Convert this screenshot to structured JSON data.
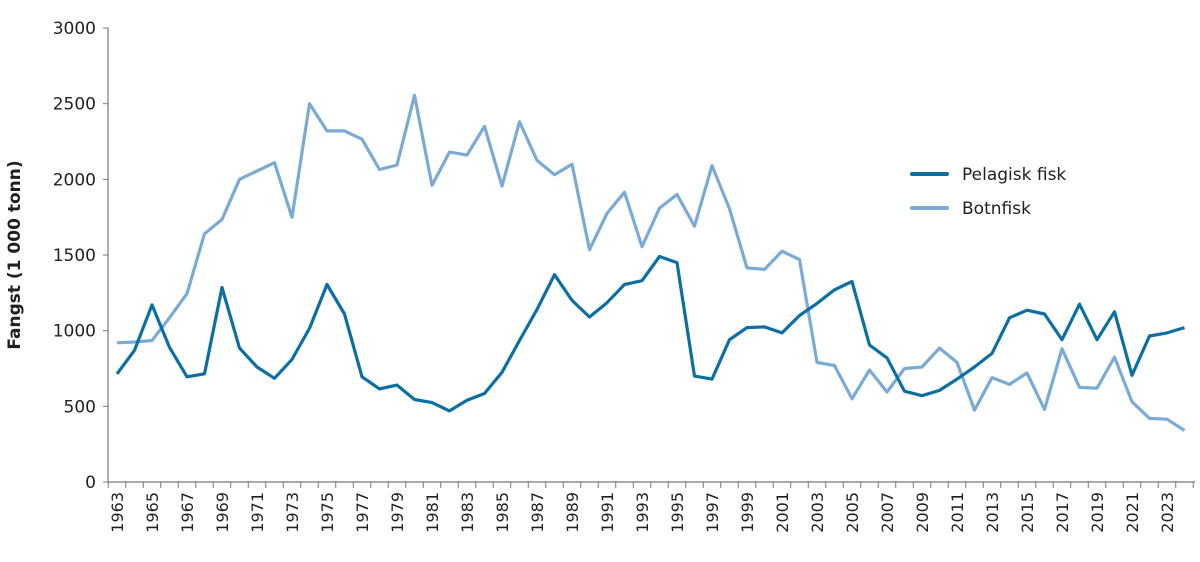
{
  "chart_data": {
    "type": "line",
    "title": "",
    "xlabel": "",
    "ylabel": "Fangst (1 000 tonn)",
    "ylim": [
      0,
      3000
    ],
    "yticks": [
      0,
      500,
      1000,
      1500,
      2000,
      2500,
      3000
    ],
    "x": [
      1963,
      1964,
      1965,
      1966,
      1967,
      1968,
      1969,
      1970,
      1971,
      1972,
      1973,
      1974,
      1975,
      1976,
      1977,
      1978,
      1979,
      1980,
      1981,
      1982,
      1983,
      1984,
      1985,
      1986,
      1987,
      1988,
      1989,
      1990,
      1991,
      1992,
      1993,
      1994,
      1995,
      1996,
      1997,
      1998,
      1999,
      2000,
      2001,
      2002,
      2003,
      2004,
      2005,
      2006,
      2007,
      2008,
      2009,
      2010,
      2011,
      2012,
      2013,
      2014,
      2015,
      2016,
      2017,
      2018,
      2019,
      2020,
      2021,
      2022,
      2023,
      2024
    ],
    "xtick_labels": [
      "1963",
      "1965",
      "1967",
      "1969",
      "1971",
      "1973",
      "1975",
      "1977",
      "1979",
      "1981",
      "1983",
      "1985",
      "1987",
      "1989",
      "1991",
      "1993",
      "1995",
      "1997",
      "1999",
      "2001",
      "2003",
      "2005",
      "2007",
      "2009",
      "2011",
      "2013",
      "2015",
      "2017",
      "2019",
      "2021",
      "2023"
    ],
    "grid": false,
    "legend_position": "right",
    "series": [
      {
        "name": "Pelagisk fisk",
        "color": "#0b6fa4",
        "values": [
          714,
          870,
          1170,
          890,
          695,
          715,
          1285,
          885,
          760,
          685,
          810,
          1015,
          1305,
          1110,
          695,
          615,
          640,
          545,
          525,
          470,
          540,
          585,
          725,
          935,
          1140,
          1370,
          1200,
          1090,
          1185,
          1305,
          1330,
          1490,
          1450,
          700,
          680,
          940,
          1020,
          1025,
          985,
          1100,
          1180,
          1270,
          1325,
          905,
          820,
          600,
          570,
          605,
          680,
          760,
          850,
          1085,
          1135,
          1110,
          940,
          1175,
          940,
          1125,
          705,
          965,
          985,
          1020
        ]
      },
      {
        "name": "Botnfisk",
        "color": "#7aaad6",
        "values": [
          920,
          925,
          935,
          1085,
          1245,
          1640,
          1735,
          2000,
          2055,
          2110,
          1750,
          2500,
          2320,
          2320,
          2265,
          2065,
          2095,
          2555,
          1960,
          2180,
          2160,
          2350,
          1955,
          2380,
          2125,
          2030,
          2100,
          1535,
          1775,
          1915,
          1555,
          1810,
          1900,
          1690,
          2090,
          1805,
          1415,
          1405,
          1525,
          1470,
          790,
          770,
          550,
          740,
          595,
          750,
          760,
          885,
          790,
          475,
          690,
          645,
          720,
          480,
          880,
          625,
          620,
          825,
          530,
          420,
          415,
          340
        ]
      }
    ]
  }
}
